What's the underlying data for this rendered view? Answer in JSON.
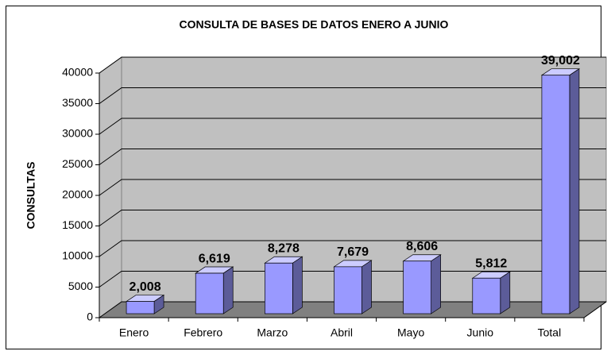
{
  "chart_data": {
    "type": "bar3d",
    "title": "CONSULTA DE BASES DE DATOS ENERO A JUNIO",
    "y_label": "CONSULTAS",
    "categories": [
      "Enero",
      "Febrero",
      "Marzo",
      "Abril",
      "Mayo",
      "Junio",
      "Total"
    ],
    "values": [
      2008,
      6619,
      8278,
      7679,
      8606,
      5812,
      39002
    ],
    "value_labels": [
      "2,008",
      "6,619",
      "8,278",
      "7,679",
      "8,606",
      "5,812",
      "39,002"
    ],
    "color": "#9999ff",
    "ylim": [
      0,
      40000
    ],
    "yticks": [
      0,
      5000,
      10000,
      15000,
      20000,
      25000,
      30000,
      35000,
      40000
    ],
    "grid": true
  }
}
